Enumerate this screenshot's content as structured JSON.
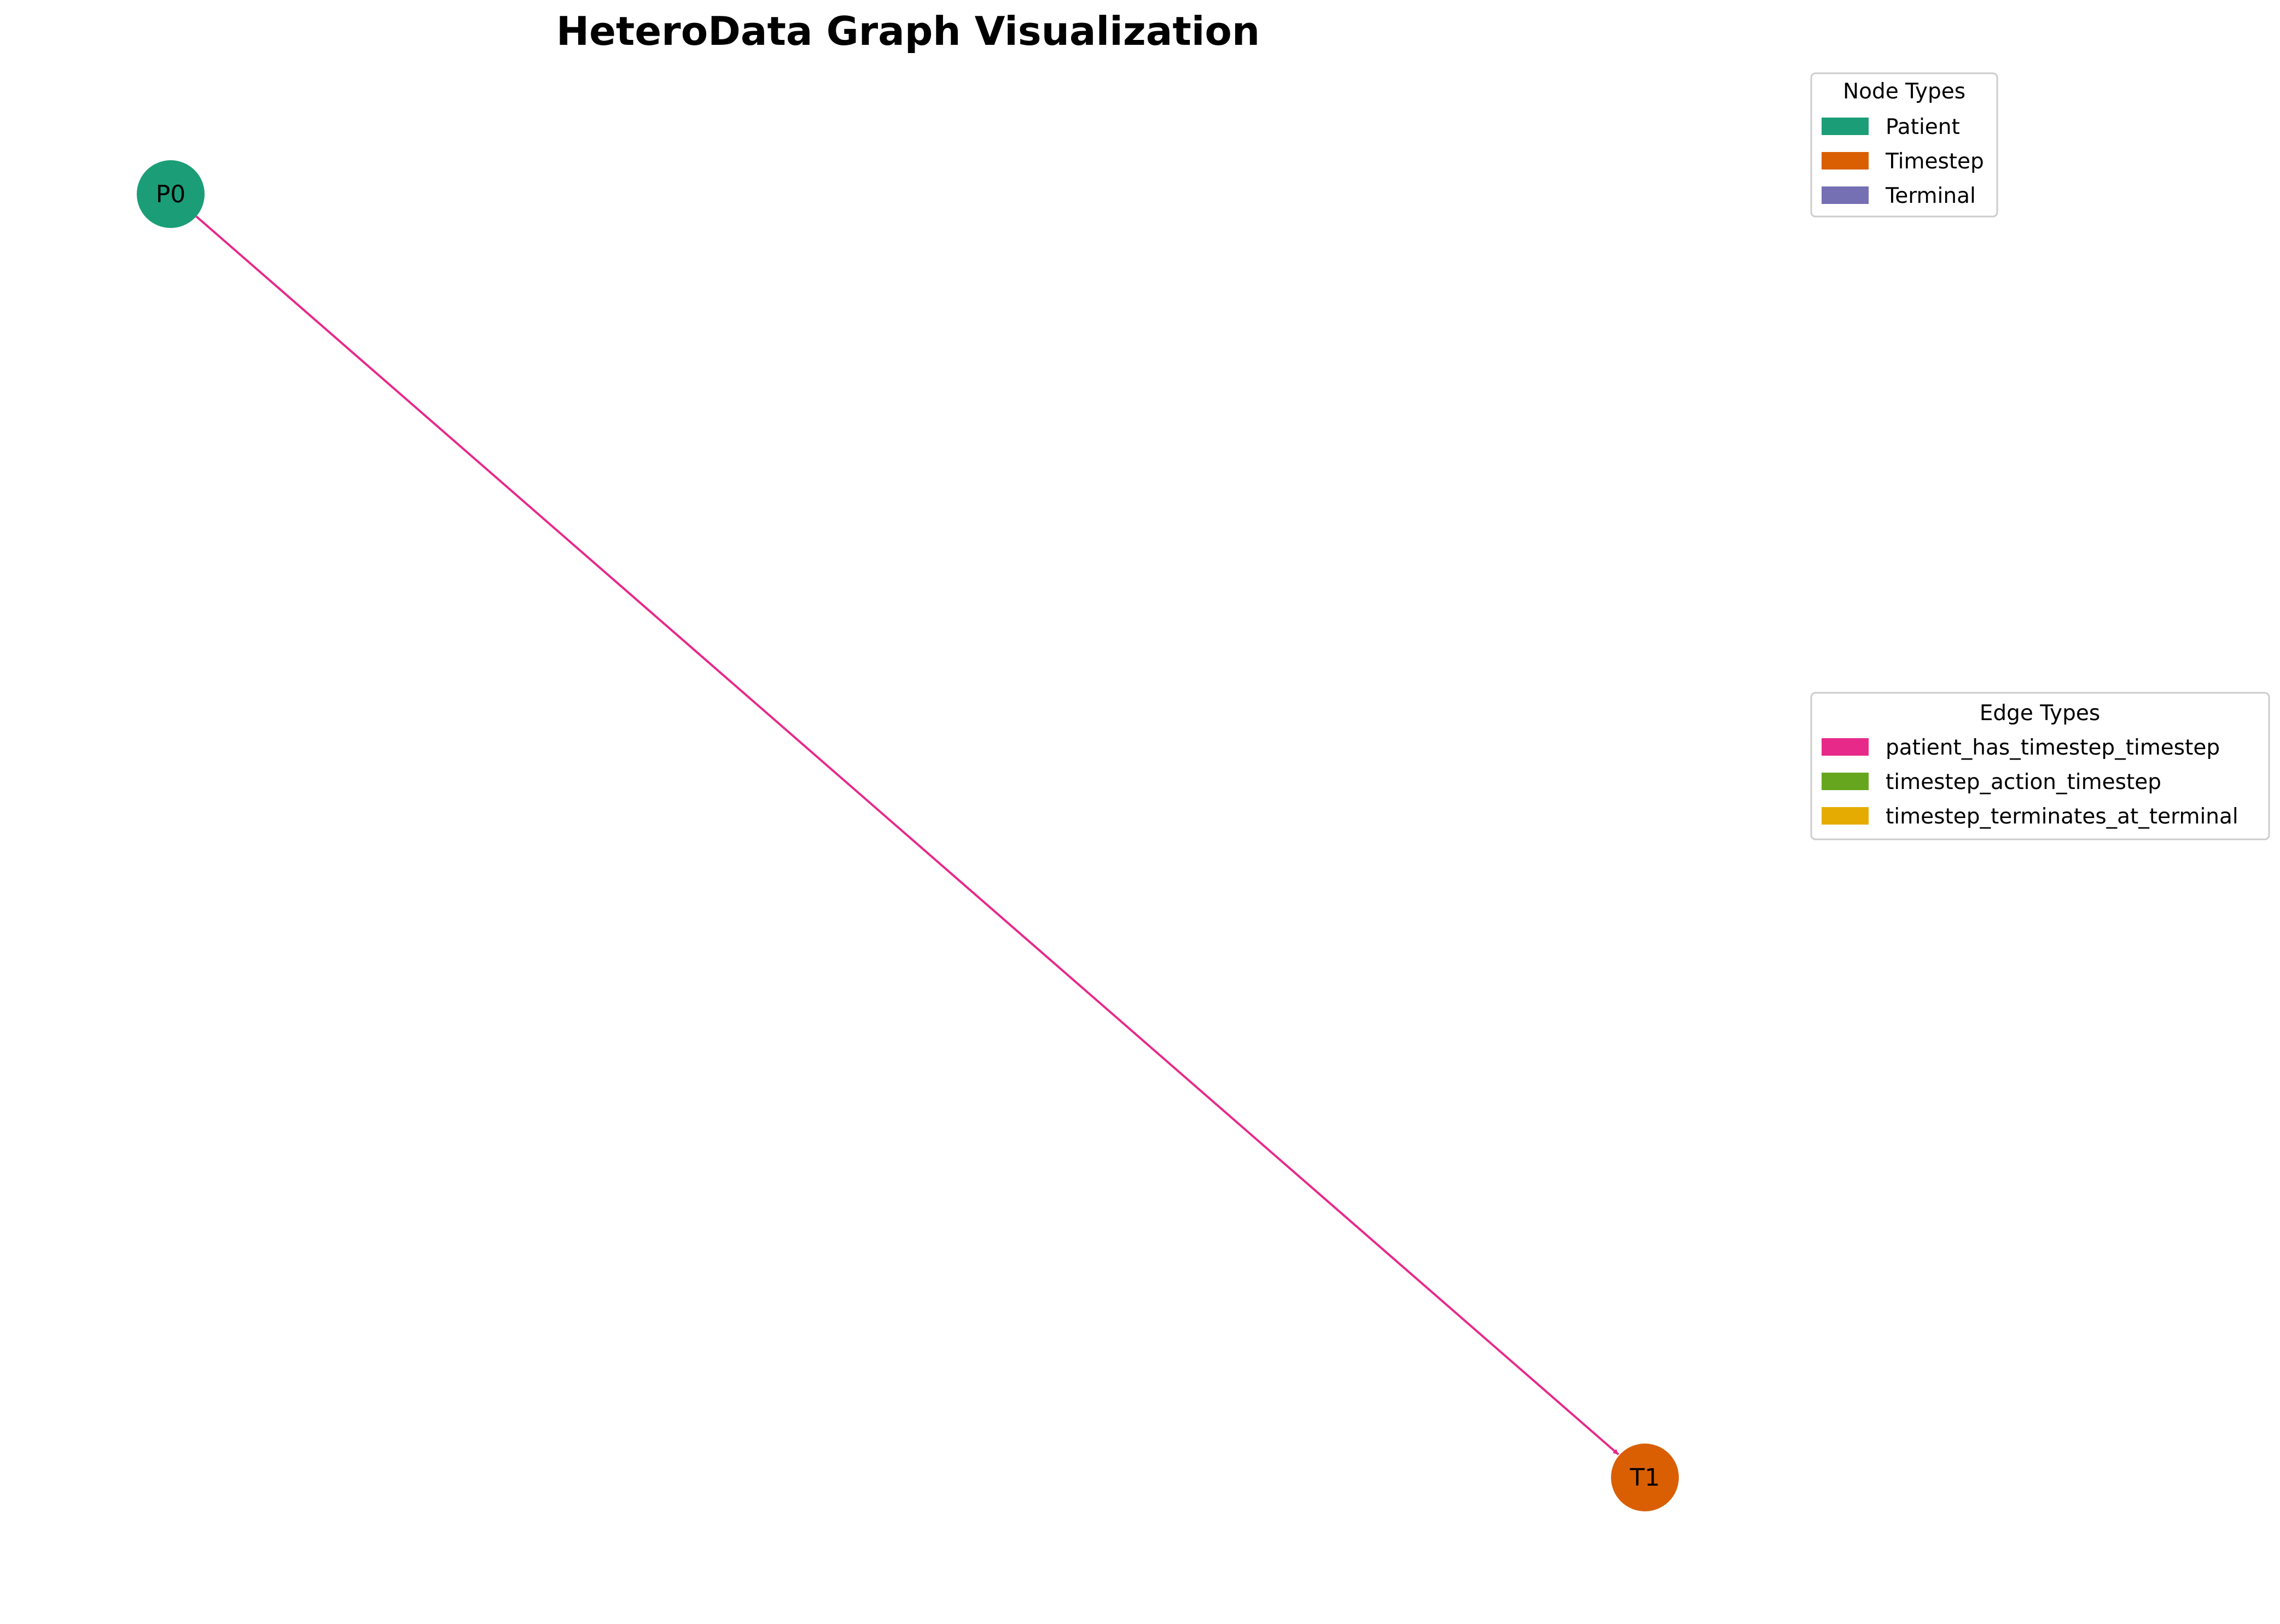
{
  "title": "HeteroData Graph Visualization",
  "node_legend": {
    "title": "Node Types",
    "items": [
      {
        "label": "Patient",
        "color": "#1b9e77"
      },
      {
        "label": "Timestep",
        "color": "#d95f02"
      },
      {
        "label": "Terminal",
        "color": "#7570b3"
      }
    ]
  },
  "edge_legend": {
    "title": "Edge Types",
    "items": [
      {
        "label": "patient_has_timestep_timestep",
        "color": "#e7298a"
      },
      {
        "label": "timestep_action_timestep",
        "color": "#66a61e"
      },
      {
        "label": "timestep_terminates_at_terminal",
        "color": "#e6ab02"
      }
    ]
  },
  "nodes": [
    {
      "id": "P0",
      "label": "P0",
      "type": "Patient",
      "color": "#1b9e77"
    },
    {
      "id": "T1",
      "label": "T1",
      "type": "Timestep",
      "color": "#d95f02"
    }
  ],
  "edges": [
    {
      "source": "P0",
      "target": "T1",
      "type": "patient_has_timestep_timestep",
      "color": "#e7298a"
    }
  ]
}
